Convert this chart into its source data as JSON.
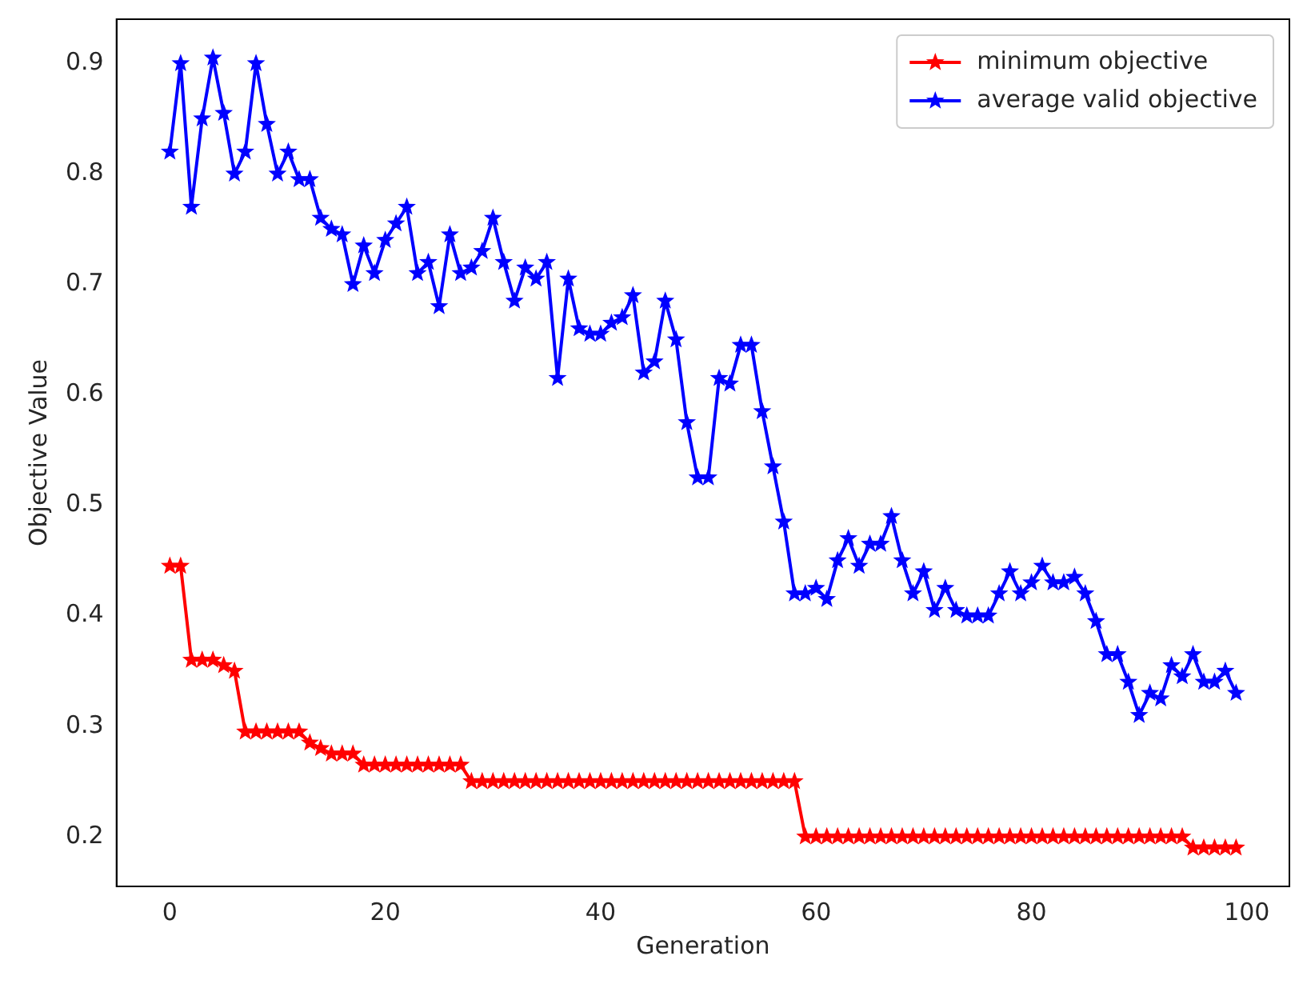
{
  "chart_data": {
    "type": "line",
    "xlabel": "Generation",
    "ylabel": "Objective Value",
    "x": [
      0,
      1,
      2,
      3,
      4,
      5,
      6,
      7,
      8,
      9,
      10,
      11,
      12,
      13,
      14,
      15,
      16,
      17,
      18,
      19,
      20,
      21,
      22,
      23,
      24,
      25,
      26,
      27,
      28,
      29,
      30,
      31,
      32,
      33,
      34,
      35,
      36,
      37,
      38,
      39,
      40,
      41,
      42,
      43,
      44,
      45,
      46,
      47,
      48,
      49,
      50,
      51,
      52,
      53,
      54,
      55,
      56,
      57,
      58,
      59,
      60,
      61,
      62,
      63,
      64,
      65,
      66,
      67,
      68,
      69,
      70,
      71,
      72,
      73,
      74,
      75,
      76,
      77,
      78,
      79,
      80,
      81,
      82,
      83,
      84,
      85,
      86,
      87,
      88,
      89,
      90,
      91,
      92,
      93,
      94,
      95,
      96,
      97,
      98,
      99
    ],
    "series": [
      {
        "name": "minimum objective",
        "color": "#ff0000",
        "values": [
          0.445,
          0.445,
          0.36,
          0.36,
          0.36,
          0.355,
          0.35,
          0.295,
          0.295,
          0.295,
          0.295,
          0.295,
          0.295,
          0.285,
          0.28,
          0.275,
          0.275,
          0.275,
          0.265,
          0.265,
          0.265,
          0.265,
          0.265,
          0.265,
          0.265,
          0.265,
          0.265,
          0.265,
          0.25,
          0.25,
          0.25,
          0.25,
          0.25,
          0.25,
          0.25,
          0.25,
          0.25,
          0.25,
          0.25,
          0.25,
          0.25,
          0.25,
          0.25,
          0.25,
          0.25,
          0.25,
          0.25,
          0.25,
          0.25,
          0.25,
          0.25,
          0.25,
          0.25,
          0.25,
          0.25,
          0.25,
          0.25,
          0.25,
          0.25,
          0.2,
          0.2,
          0.2,
          0.2,
          0.2,
          0.2,
          0.2,
          0.2,
          0.2,
          0.2,
          0.2,
          0.2,
          0.2,
          0.2,
          0.2,
          0.2,
          0.2,
          0.2,
          0.2,
          0.2,
          0.2,
          0.2,
          0.2,
          0.2,
          0.2,
          0.2,
          0.2,
          0.2,
          0.2,
          0.2,
          0.2,
          0.2,
          0.2,
          0.2,
          0.2,
          0.2,
          0.19,
          0.19,
          0.19,
          0.19,
          0.19
        ]
      },
      {
        "name": "average valid objective",
        "color": "#0000ff",
        "values": [
          0.82,
          0.9,
          0.77,
          0.85,
          0.905,
          0.855,
          0.8,
          0.82,
          0.9,
          0.845,
          0.8,
          0.82,
          0.795,
          0.795,
          0.76,
          0.75,
          0.745,
          0.7,
          0.735,
          0.71,
          0.74,
          0.755,
          0.77,
          0.71,
          0.72,
          0.68,
          0.745,
          0.71,
          0.715,
          0.73,
          0.76,
          0.72,
          0.685,
          0.715,
          0.705,
          0.72,
          0.615,
          0.705,
          0.66,
          0.655,
          0.655,
          0.665,
          0.67,
          0.69,
          0.62,
          0.63,
          0.685,
          0.65,
          0.575,
          0.525,
          0.525,
          0.615,
          0.61,
          0.645,
          0.645,
          0.585,
          0.535,
          0.485,
          0.42,
          0.42,
          0.425,
          0.415,
          0.45,
          0.47,
          0.445,
          0.465,
          0.465,
          0.49,
          0.45,
          0.42,
          0.44,
          0.405,
          0.425,
          0.405,
          0.4,
          0.4,
          0.4,
          0.42,
          0.44,
          0.42,
          0.43,
          0.445,
          0.43,
          0.43,
          0.435,
          0.42,
          0.395,
          0.365,
          0.365,
          0.34,
          0.31,
          0.33,
          0.325,
          0.355,
          0.345,
          0.365,
          0.34,
          0.34,
          0.35,
          0.33
        ]
      }
    ],
    "xlim": [
      -4.95,
      103.95
    ],
    "ylim": [
      0.155,
      0.94
    ],
    "xticks": [
      0,
      20,
      40,
      60,
      80,
      100
    ],
    "yticks": [
      0.2,
      0.3,
      0.4,
      0.5,
      0.6,
      0.7,
      0.8,
      0.9
    ],
    "legend": "top right",
    "marker": "star",
    "line_style": "solid",
    "grid": false
  }
}
